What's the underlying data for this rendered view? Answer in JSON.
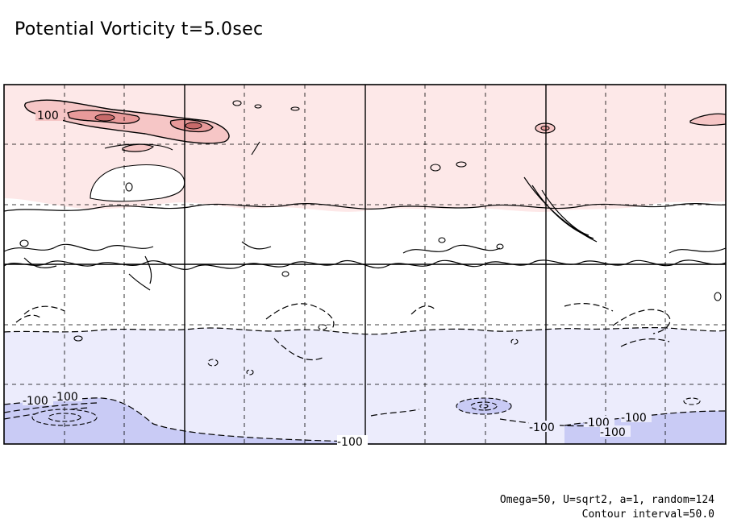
{
  "title": "Potential Vorticity t=5.0sec",
  "footer": {
    "params": "Omega=50, U=sqrt2, a=1, random=124",
    "contour_interval": "Contour interval=50.0"
  },
  "colors": {
    "positive_band": "#fde8e8",
    "positive_light": "#f6c6c6",
    "positive_mid": "#e89a9a",
    "negative_band": "#ececfc",
    "negative_deep": "#c9cbf5",
    "grid": "#000000"
  },
  "chart_data": {
    "type": "heatmap",
    "subtype": "filled contour map (latitude-longitude)",
    "title": "Potential Vorticity t=5.0sec",
    "time": "5.0sec",
    "contour_interval": 50.0,
    "grid": true,
    "solid_contours": "positive",
    "dashed_contours": "negative",
    "shading": {
      "positive": "light red",
      "negative": "light blue"
    },
    "contour_labels": [
      {
        "text": "100",
        "region": "upper-left"
      },
      {
        "text": "-100",
        "region": "lower-left"
      },
      {
        "text": "-100",
        "region": "lower-left"
      },
      {
        "text": "-100",
        "region": "bottom-center"
      },
      {
        "text": "-100",
        "region": "lower-right"
      },
      {
        "text": "-100",
        "region": "lower-right"
      },
      {
        "text": "-100",
        "region": "lower-right"
      },
      {
        "text": "-100",
        "region": "lower-right"
      }
    ],
    "parameters": {
      "Omega": "50",
      "U": "sqrt2",
      "a": "1",
      "random": "124"
    }
  }
}
